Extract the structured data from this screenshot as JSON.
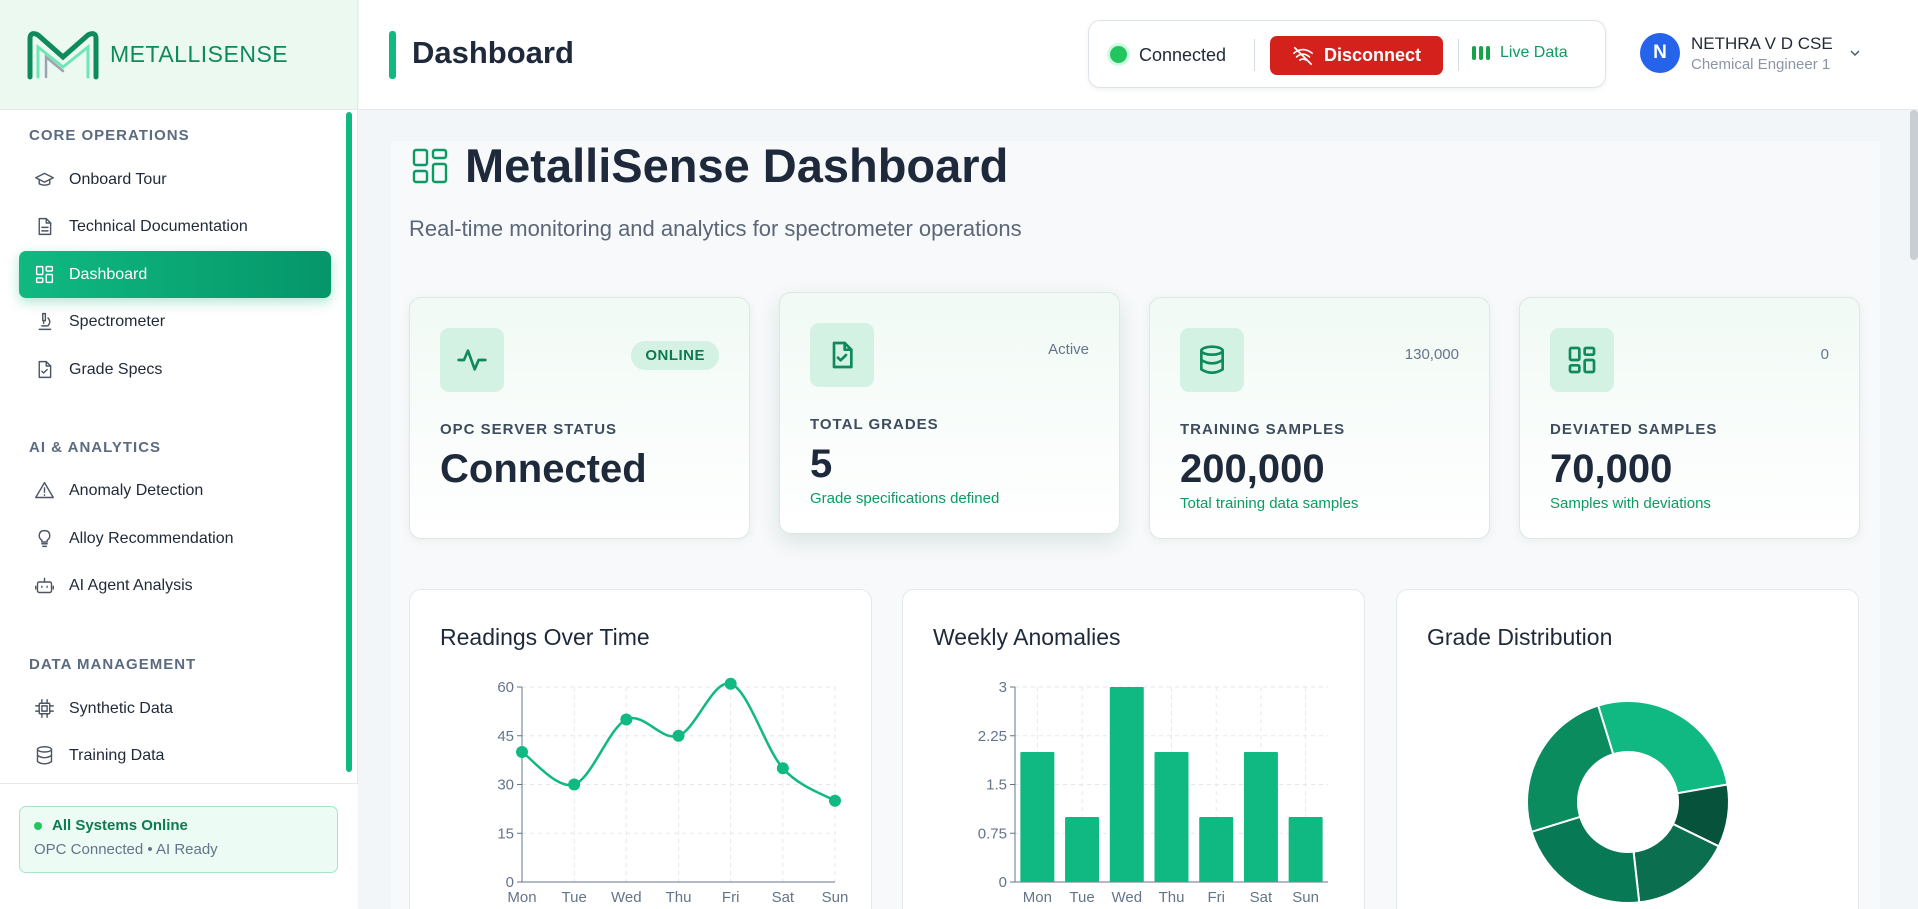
{
  "app": {
    "logo_text": "METALLISENSE",
    "accent": "#10b981",
    "accent_dark": "#059669",
    "danger": "#d4211c"
  },
  "sidebar": {
    "sections": [
      {
        "label": "CORE OPERATIONS",
        "items": [
          {
            "label": "Onboard Tour",
            "icon": "graduation-cap-icon"
          },
          {
            "label": "Technical Documentation",
            "icon": "document-icon"
          },
          {
            "label": "Dashboard",
            "icon": "dashboard-grid-icon",
            "active": true
          },
          {
            "label": "Spectrometer",
            "icon": "microscope-icon"
          },
          {
            "label": "Grade Specs",
            "icon": "file-check-icon"
          }
        ]
      },
      {
        "label": "AI & ANALYTICS",
        "items": [
          {
            "label": "Anomaly Detection",
            "icon": "warning-triangle-icon"
          },
          {
            "label": "Alloy Recommendation",
            "icon": "lightbulb-icon"
          },
          {
            "label": "AI Agent Analysis",
            "icon": "robot-icon"
          }
        ]
      },
      {
        "label": "DATA MANAGEMENT",
        "items": [
          {
            "label": "Synthetic Data",
            "icon": "chip-icon"
          },
          {
            "label": "Training Data",
            "icon": "database-icon"
          }
        ]
      }
    ],
    "footer": {
      "title": "All Systems Online",
      "subtitle": "OPC Connected • AI Ready"
    }
  },
  "topbar": {
    "title": "Dashboard",
    "connection_status": "Connected",
    "disconnect_label": "Disconnect",
    "live_label": "Live Data",
    "user": {
      "initial": "N",
      "name": "NETHRA V D CSE",
      "role": "Chemical Engineer 1"
    }
  },
  "hero": {
    "title": "MetalliSense Dashboard",
    "subtitle": "Real-time monitoring and analytics for spectrometer operations"
  },
  "stats": [
    {
      "label": "OPC SERVER STATUS",
      "value": "Connected",
      "badge": "ONLINE",
      "note": "",
      "icon": "activity-pulse-icon"
    },
    {
      "label": "TOTAL GRADES",
      "value": "5",
      "badge": "Active",
      "note": "Grade specifications defined",
      "icon": "file-check-icon"
    },
    {
      "label": "TRAINING SAMPLES",
      "value": "200,000",
      "badge": "130,000",
      "note": "Total training data samples",
      "icon": "database-icon"
    },
    {
      "label": "DEVIATED SAMPLES",
      "value": "70,000",
      "badge": "0",
      "note": "Samples with deviations",
      "icon": "dashboard-grid-icon"
    }
  ],
  "charts": {
    "readings_title": "Readings Over Time",
    "anomalies_title": "Weekly Anomalies",
    "distribution_title": "Grade Distribution"
  },
  "chart_data": [
    {
      "type": "line",
      "title": "Readings Over Time",
      "categories": [
        "Mon",
        "Tue",
        "Wed",
        "Thu",
        "Fri",
        "Sat",
        "Sun"
      ],
      "values": [
        40,
        30,
        50,
        45,
        61,
        35,
        25
      ],
      "ylim": [
        0,
        60
      ],
      "yticks": [
        "0",
        "15",
        "30",
        "45",
        "60"
      ],
      "color": "#10b981"
    },
    {
      "type": "bar",
      "title": "Weekly Anomalies",
      "categories": [
        "Mon",
        "Tue",
        "Wed",
        "Thu",
        "Fri",
        "Sat",
        "Sun"
      ],
      "values": [
        2,
        1,
        3,
        2,
        1,
        2,
        1
      ],
      "ylim": [
        0,
        3
      ],
      "yticks": [
        "0",
        "0.75",
        "1.5",
        "2.25",
        "3"
      ],
      "color": "#10b981"
    },
    {
      "type": "pie",
      "title": "Grade Distribution",
      "values": [
        27,
        10,
        16,
        22,
        25
      ],
      "colors": [
        "#10b981",
        "#06523a",
        "#0b6e4f",
        "#077a55",
        "#0b8c5e"
      ]
    }
  ]
}
